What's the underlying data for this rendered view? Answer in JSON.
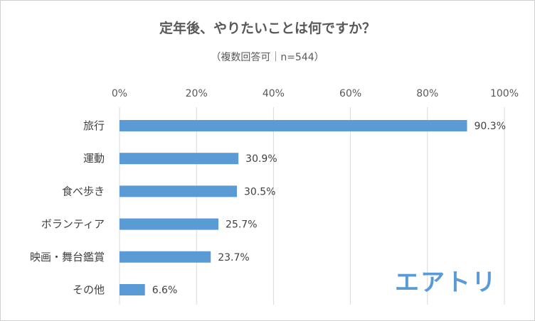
{
  "chart_data": {
    "type": "bar",
    "orientation": "horizontal",
    "title": "定年後、やりたいことは何ですか？",
    "subtitle": "（複数回答可｜n=544）",
    "categories": [
      "旅行",
      "運動",
      "食べ歩き",
      "ボランティア",
      "映画・舞台鑑賞",
      "その他"
    ],
    "values": [
      90.3,
      30.9,
      30.5,
      25.7,
      23.7,
      6.6
    ],
    "value_labels": [
      "90.3%",
      "30.9%",
      "30.5%",
      "25.7%",
      "23.7%",
      "6.6%"
    ],
    "xlim": [
      0,
      100
    ],
    "x_ticks": [
      0,
      20,
      40,
      60,
      80,
      100
    ],
    "x_tick_labels": [
      "0%",
      "20%",
      "40%",
      "60%",
      "80%",
      "100%"
    ],
    "x_axis_position": "top",
    "grid": true,
    "bar_color": "#5b9bd5",
    "grid_color": "#d9d9d9"
  },
  "logo": {
    "text": "エアトリ",
    "color": "#5b9bd5"
  }
}
